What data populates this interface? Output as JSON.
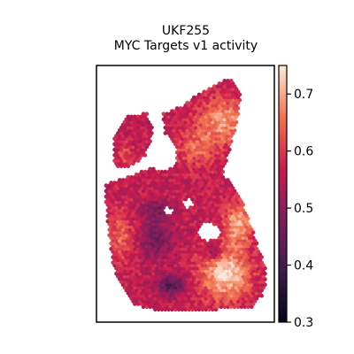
{
  "chart_data": {
    "type": "heatmap",
    "subtype": "spatial-scatter",
    "title_lines": [
      "UKF255",
      "MYC Targets v1 activity"
    ],
    "colormap": "rocket",
    "colorbar": {
      "range": [
        0.3,
        0.75
      ],
      "ticks": [
        0.3,
        0.4,
        0.5,
        0.6,
        0.7
      ],
      "tick_labels": [
        "0.3",
        "0.4",
        "0.5",
        "0.6",
        "0.7"
      ]
    },
    "grid": false,
    "spot_grid": {
      "x_range": [
        0,
        100
      ],
      "y_range": [
        0,
        160
      ],
      "spacing": 2.1
    },
    "regions": [
      {
        "name": "bottom-right-core",
        "cx": 75,
        "cy": 27,
        "rx": 15,
        "ry": 17,
        "value": 0.74
      },
      {
        "name": "right-mid",
        "cx": 83,
        "cy": 60,
        "rx": 9,
        "ry": 14,
        "value": 0.7
      },
      {
        "name": "top-right-lobe",
        "cx": 74,
        "cy": 128,
        "rx": 16,
        "ry": 15,
        "value": 0.69
      },
      {
        "name": "upper-center",
        "cx": 57,
        "cy": 110,
        "rx": 12,
        "ry": 12,
        "value": 0.64
      },
      {
        "name": "left-mid",
        "cx": 10,
        "cy": 52,
        "rx": 8,
        "ry": 15,
        "value": 0.65
      },
      {
        "name": "left-lobe-upper",
        "cx": 13,
        "cy": 105,
        "rx": 5,
        "ry": 10,
        "value": 0.62
      },
      {
        "name": "center-low",
        "cx": 32,
        "cy": 50,
        "rx": 10,
        "ry": 12,
        "value": 0.46
      },
      {
        "name": "bottom-center",
        "cx": 42,
        "cy": 20,
        "rx": 9,
        "ry": 7,
        "value": 0.42
      },
      {
        "name": "top-mid",
        "cx": 33,
        "cy": 70,
        "rx": 10,
        "ry": 6,
        "value": 0.47
      },
      {
        "name": "right-dip",
        "cx": 68,
        "cy": 42,
        "rx": 5,
        "ry": 5,
        "value": 0.45
      }
    ]
  }
}
